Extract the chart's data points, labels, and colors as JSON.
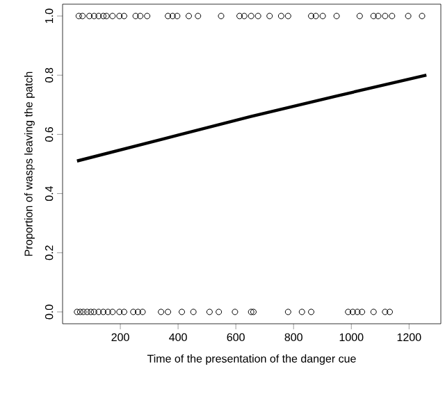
{
  "chart_data": {
    "type": "scatter",
    "xlabel": "Time of the presentation of the danger cue",
    "ylabel": "Proportion of wasps leaving the patch",
    "xlim": [
      0,
      1310
    ],
    "ylim": [
      -0.04,
      1.04
    ],
    "xticks": [
      200,
      400,
      600,
      800,
      1000,
      1200
    ],
    "yticks": [
      {
        "value": 0,
        "label": "0.0"
      },
      {
        "value": 0.2,
        "label": "0.2"
      },
      {
        "value": 0.4,
        "label": "0.4"
      },
      {
        "value": 0.6,
        "label": "0.6"
      },
      {
        "value": 0.8,
        "label": "0.8"
      },
      {
        "value": 1,
        "label": "1.0"
      }
    ],
    "grid": false,
    "series": [
      {
        "color": "#000000",
        "marker": "circle",
        "x": [
          56,
          69,
          93,
          109,
          125,
          141,
          152,
          173,
          197,
          213,
          253,
          269,
          293,
          365,
          381,
          397,
          437,
          469,
          549,
          613,
          629,
          653,
          677,
          717,
          757,
          781,
          861,
          877,
          901,
          949,
          1029,
          1077,
          1093,
          1117,
          1141,
          1197,
          1245,
          50,
          61,
          72,
          85,
          98,
          109,
          125,
          141,
          157,
          173,
          197,
          213,
          245,
          261,
          277,
          341,
          365,
          413,
          453,
          509,
          541,
          597,
          653,
          661,
          781,
          829,
          861,
          989,
          1005,
          1021,
          1037,
          1077,
          1117,
          1133
        ],
        "values": [
          1,
          1,
          1,
          1,
          1,
          1,
          1,
          1,
          1,
          1,
          1,
          1,
          1,
          1,
          1,
          1,
          1,
          1,
          1,
          1,
          1,
          1,
          1,
          1,
          1,
          1,
          1,
          1,
          1,
          1,
          1,
          1,
          1,
          1,
          1,
          1,
          1,
          0,
          0,
          0,
          0,
          0,
          0,
          0,
          0,
          0,
          0,
          0,
          0,
          0,
          0,
          0,
          0,
          0,
          0,
          0,
          0,
          0,
          0,
          0,
          0,
          0,
          0,
          0,
          0,
          0,
          0,
          0,
          0,
          0,
          0
        ]
      },
      {
        "type": "line",
        "color": "#000000",
        "marker": "none",
        "x": [
          50,
          350,
          650,
          950,
          1260
        ],
        "values": [
          0.51,
          0.585,
          0.66,
          0.73,
          0.8
        ]
      }
    ]
  }
}
